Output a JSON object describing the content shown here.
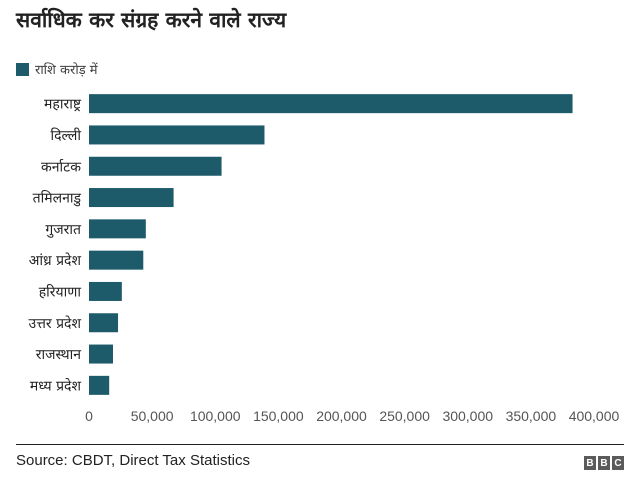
{
  "title": "सर्वाधिक कर संग्रह करने वाले राज्य",
  "colors": {
    "bar": "#1d5a6a",
    "text": "#222222",
    "axis": "#555555"
  },
  "chart_data": {
    "type": "bar",
    "orientation": "horizontal",
    "categories": [
      "महाराष्ट्र",
      "दिल्ली",
      "कर्नाटक",
      "तमिलनाडु",
      "गुजरात",
      "आंध्र प्रदेश",
      "हरियाणा",
      "उत्तर प्रदेश",
      "राजस्थान",
      "मध्य प्रदेश"
    ],
    "series": [
      {
        "name": "राशि करोड़ में",
        "values": [
          383000,
          139000,
          105000,
          67000,
          45000,
          43000,
          26000,
          23000,
          19000,
          16000
        ]
      }
    ],
    "xticks": [
      "0",
      "50,000",
      "100,000",
      "150,000",
      "200,000",
      "250,000",
      "300,000",
      "350,000",
      "400,000"
    ],
    "xlim": [
      0,
      400000
    ],
    "legend_position": "top-left",
    "grid": false
  },
  "footer": {
    "source": "Source: CBDT, Direct Tax Statistics",
    "logo_letters": [
      "B",
      "B",
      "C"
    ]
  }
}
